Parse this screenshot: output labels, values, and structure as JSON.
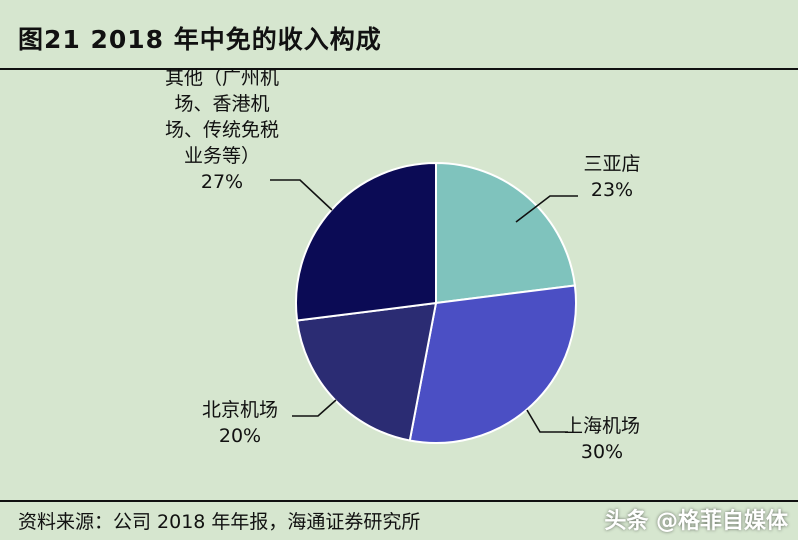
{
  "title": "图21 2018 年中免的收入构成",
  "source": "资料来源：公司 2018 年年报，海通证券研究所",
  "watermark": "头条 @格菲自媒体",
  "chart_data": {
    "type": "pie",
    "start_angle_deg": 0,
    "direction": "clockwise",
    "slices": [
      {
        "label": "三亚店",
        "value": 23,
        "value_label": "23%",
        "color": "#7fc3bd"
      },
      {
        "label": "上海机场",
        "value": 30,
        "value_label": "30%",
        "color": "#4b4fc4"
      },
      {
        "label": "北京机场",
        "value": 20,
        "value_label": "20%",
        "color": "#2b2c73"
      },
      {
        "label_lines": [
          "其他（广州机",
          "场、香港机",
          "场、传统免税",
          "业务等）"
        ],
        "value": 27,
        "value_label": "27%",
        "color": "#0b0b55"
      }
    ]
  }
}
